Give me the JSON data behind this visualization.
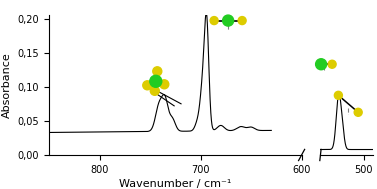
{
  "title": "",
  "xlabel": "Wavenumber / cm⁻¹",
  "ylabel": "Absorbance",
  "yticks": [
    0.0,
    0.05,
    0.1,
    0.15,
    0.2
  ],
  "ytick_labels": [
    "0,00",
    "0,05",
    "0,10",
    "0,15",
    "0,20"
  ],
  "ylim": [
    0.0,
    0.205
  ],
  "background_color": "#ffffff",
  "line_color": "#000000",
  "baseline": 0.033,
  "mol_colors": {
    "center": "#22cc22",
    "ligand": "#ddcc00"
  }
}
